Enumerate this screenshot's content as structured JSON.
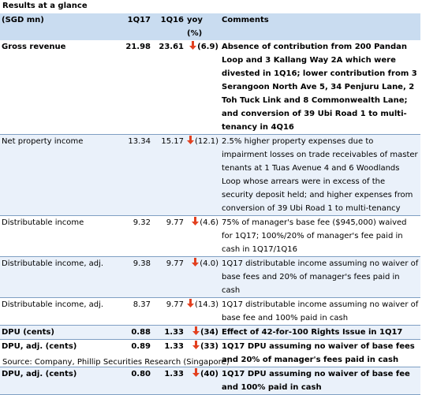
{
  "title": "Results at a glance",
  "header": {
    "metric": "(SGD mn)",
    "q1": "1Q17",
    "q2": "1Q16",
    "yoy": "yoy (%)",
    "comments": "Comments"
  },
  "colors": {
    "header_bg": "#c9dcf0",
    "shade_bg": "#eaf1fa",
    "down_arrow": "#e2401f",
    "rule": "#7f9fc3"
  },
  "rows": [
    {
      "metric": "Gross revenue",
      "q1": "21.98",
      "q2": "23.61",
      "yoy": "(6.9)",
      "arrow": "down-arrow-icon",
      "comment": "Absence of contribution from 200 Pandan Loop and 3 Kallang Way 2A which were divested in 1Q16; lower contribution from 3 Serangoon North Ave 5, 34 Penjuru Lane, 2 Toh Tuck Link and 8 Commonwealth Lane; and conversion of 39 Ubi Road 1 to multi-tenancy in 4Q16"
    },
    {
      "metric": "Net property income",
      "q1": "13.34",
      "q2": "15.17",
      "yoy": "(12.1)",
      "arrow": "down-arrow-icon",
      "comment": "2.5% higher property expenses due to impairment losses on trade receivables of master tenants at 1 Tuas Avenue 4 and 6 Woodlands Loop whose arrears were in excess of the security deposit held; and higher expenses from conversion of 39 Ubi Road 1 to multi-tenancy"
    },
    {
      "metric": "Distributable income",
      "q1": "9.32",
      "q2": "9.77",
      "yoy": "(4.6)",
      "arrow": "down-arrow-icon",
      "comment": "75% of manager's base fee ($945,000) waived for 1Q17; 100%/20% of manager's fee paid in cash in 1Q17/1Q16"
    },
    {
      "metric": "Distributable income, adj.",
      "q1": "9.38",
      "q2": "9.77",
      "yoy": "(4.0)",
      "arrow": "down-arrow-icon",
      "comment": "1Q17 distributable income assuming no waiver of base fees and 20% of manager's fees paid in cash"
    },
    {
      "metric": "Distributable income, adj.",
      "q1": "8.37",
      "q2": "9.77",
      "yoy": "(14.3)",
      "arrow": "down-arrow-icon",
      "comment": "1Q17 distributable income assuming no waiver of base fee and 100% paid in cash"
    },
    {
      "metric": "DPU (cents)",
      "q1": "0.88",
      "q2": "1.33",
      "yoy": "(34)",
      "arrow": "down-arrow-icon",
      "comment": "Effect of 42-for-100 Rights Issue in 1Q17"
    },
    {
      "metric": "DPU, adj. (cents)",
      "q1": "0.89",
      "q2": "1.33",
      "yoy": "(33)",
      "arrow": "down-arrow-icon",
      "comment": "1Q17 DPU assuming no waiver of base fees and 20% of manager's fees paid in cash"
    },
    {
      "metric": "DPU, adj. (cents)",
      "q1": "0.80",
      "q2": "1.33",
      "yoy": "(40)",
      "arrow": "down-arrow-icon",
      "comment": "1Q17 DPU assuming no waiver of base fee and 100% paid in cash"
    }
  ],
  "source": "Source: Company, Phillip Securities Research (Singapore)"
}
